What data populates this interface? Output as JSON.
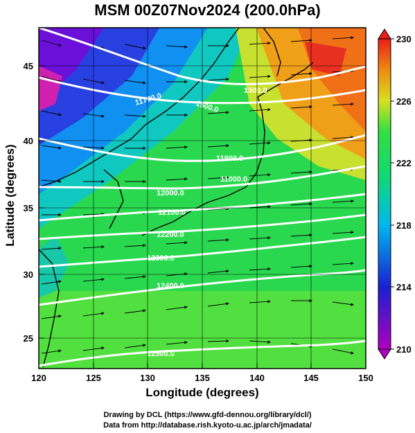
{
  "title": "MSM 00Z07Nov2024 (200.0hPa)",
  "axes": {
    "xlabel": "Longitude (degrees)",
    "ylabel": "Latitude  (degrees)",
    "xticks": [
      "120",
      "125",
      "130",
      "135",
      "140",
      "145",
      "150"
    ],
    "yticks": [
      "25",
      "30",
      "35",
      "40",
      "45"
    ]
  },
  "colorbar": {
    "ticks": [
      "230",
      "226",
      "222",
      "218",
      "214",
      "210"
    ],
    "range": [
      210,
      230
    ],
    "colors": [
      "#b000c0",
      "#1a20d0",
      "#00b8f0",
      "#10d878",
      "#30e040",
      "#d8e020",
      "#f08a10",
      "#e82018"
    ]
  },
  "contour_labels": [
    "1500.0",
    "11700.0",
    "1500.0",
    "11900.0",
    "11000.0",
    "12000.0",
    "12100.0",
    "12200.0",
    "12300.0",
    "12400.0",
    "12500.0"
  ],
  "footer": {
    "line1": "Drawing by DCL (https://www.gfd-dennou.org/library/dcl/)",
    "line2": "Data from http://database.rish.kyoto-u.ac.jp/arch/jmadata/"
  }
}
